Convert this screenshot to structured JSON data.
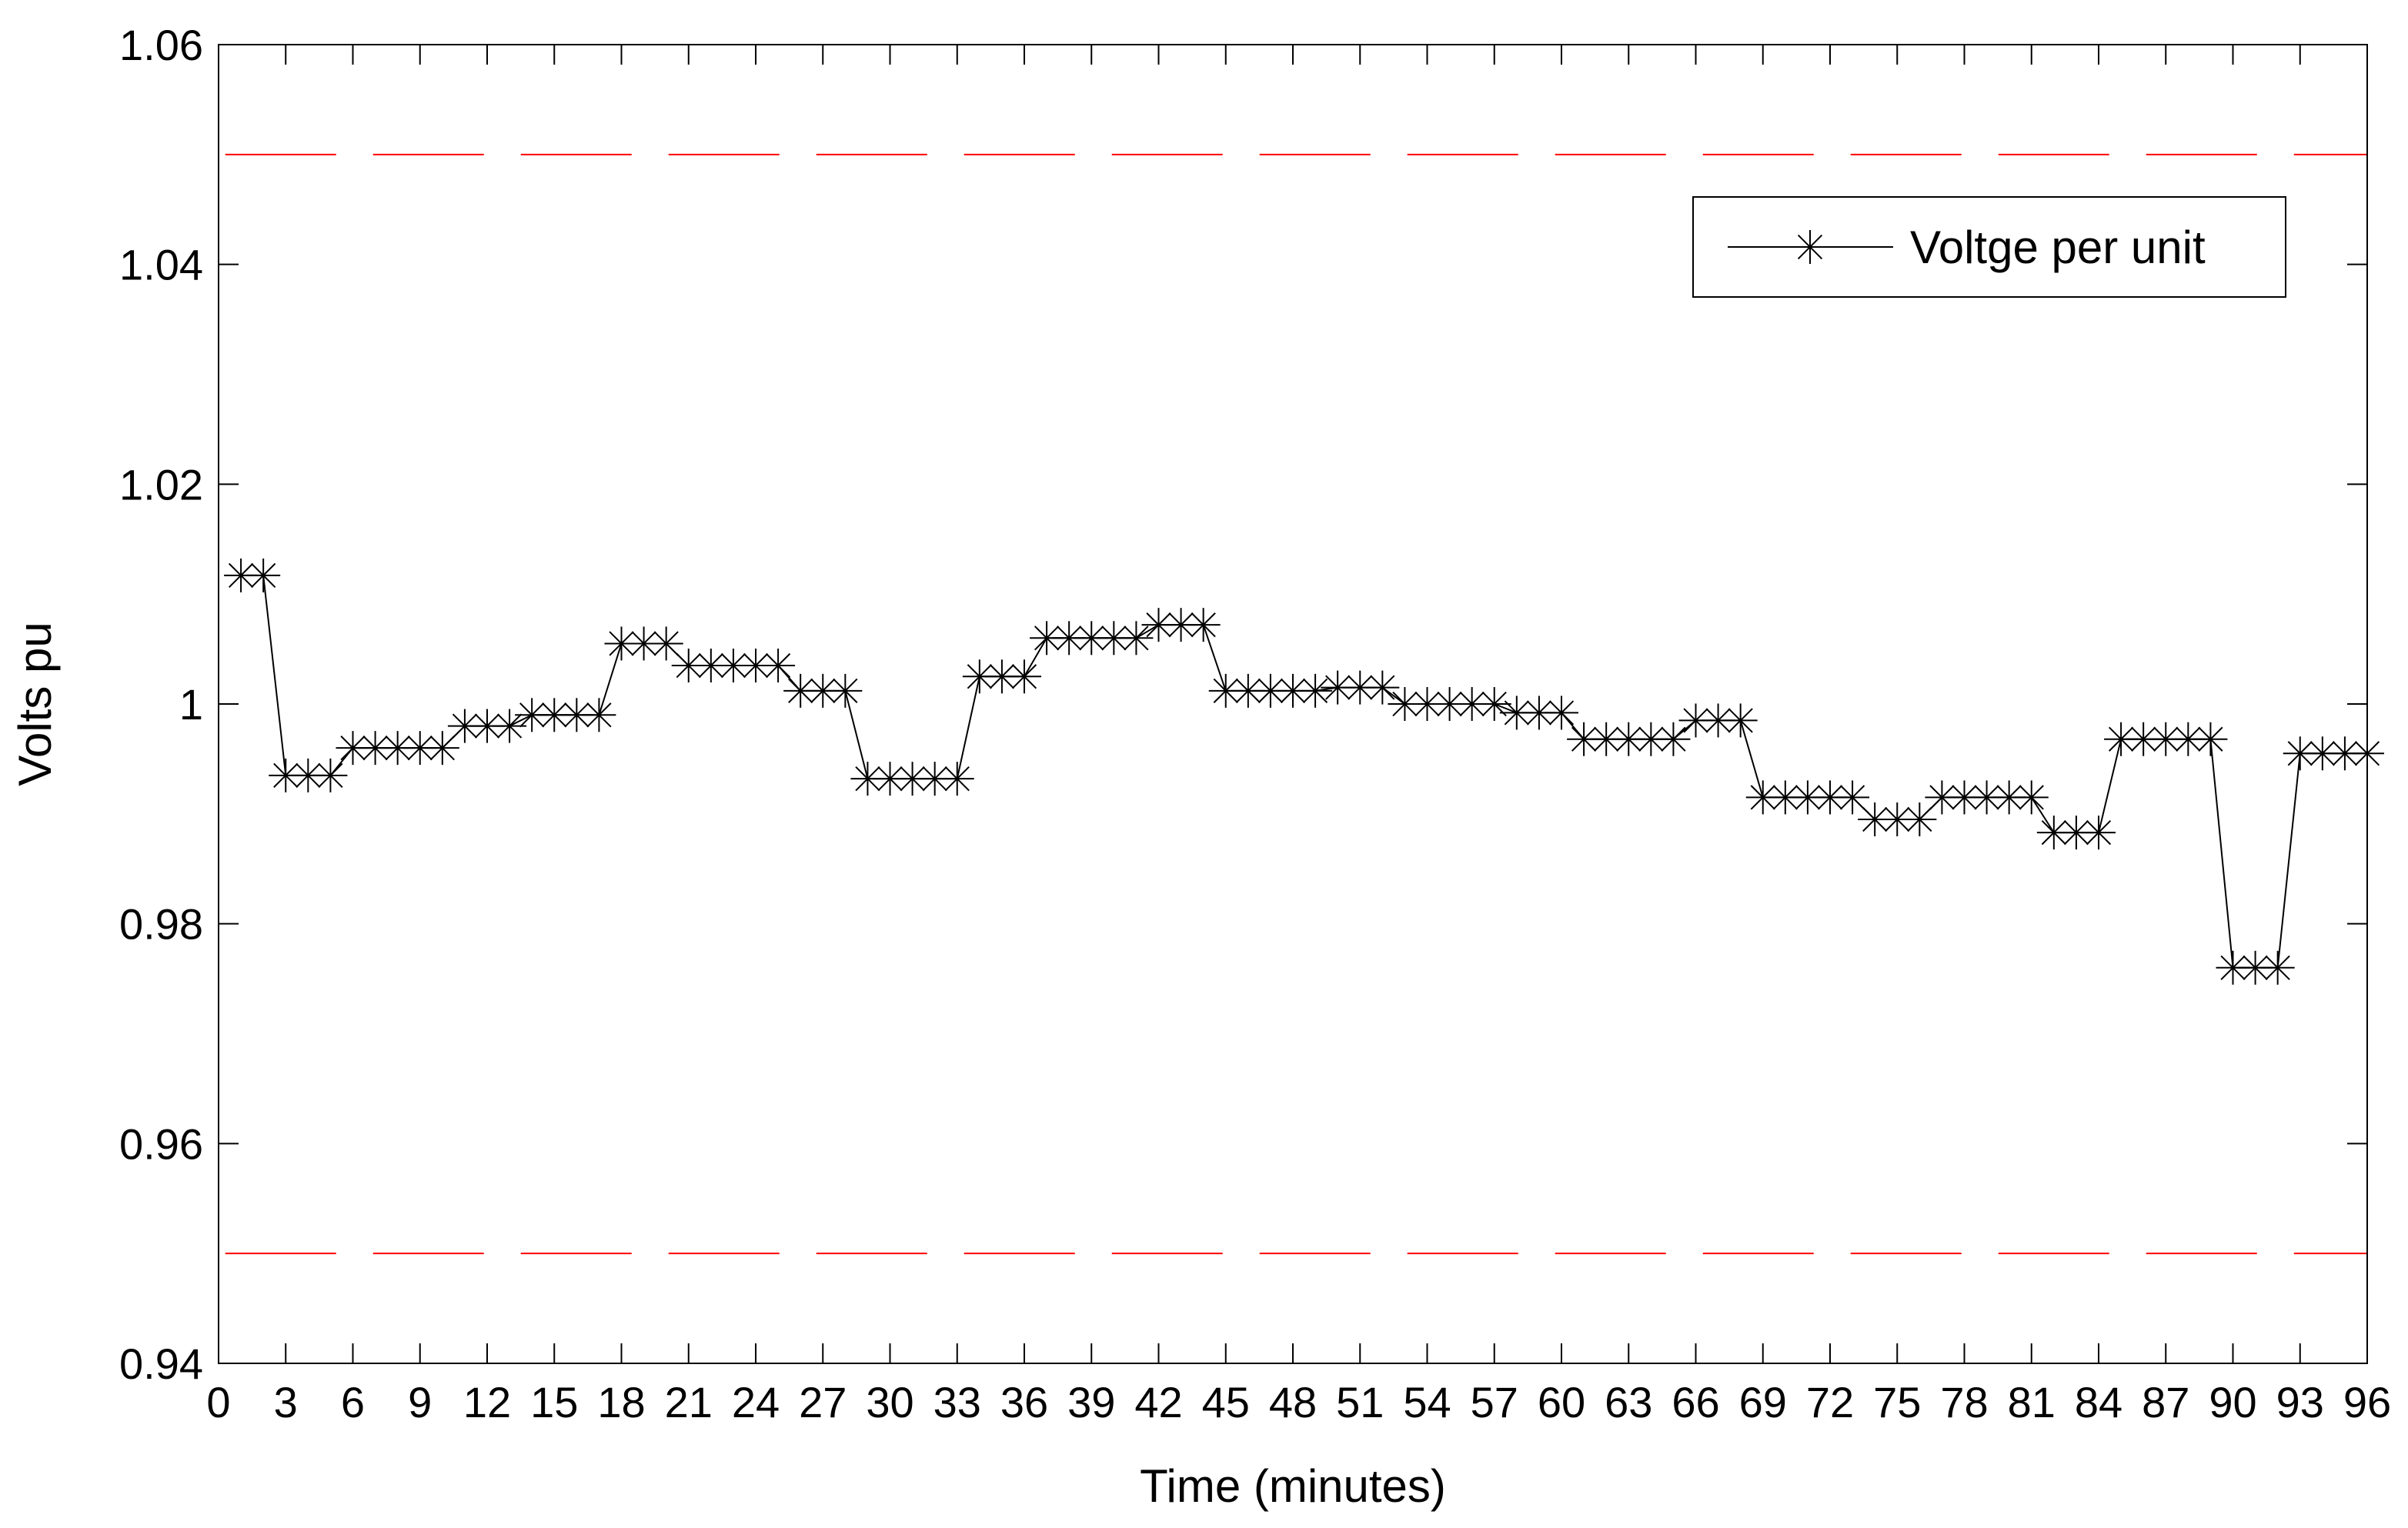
{
  "chart_data": {
    "type": "line",
    "title": "",
    "xlabel": "Time (minutes)",
    "ylabel": "Volts pu",
    "xlim": [
      0,
      96
    ],
    "ylim": [
      0.94,
      1.06
    ],
    "xticks": [
      0,
      3,
      6,
      9,
      12,
      15,
      18,
      21,
      24,
      27,
      30,
      33,
      36,
      39,
      42,
      45,
      48,
      51,
      54,
      57,
      60,
      63,
      66,
      69,
      72,
      75,
      78,
      81,
      84,
      87,
      90,
      93,
      96
    ],
    "yticks": [
      0.94,
      0.96,
      0.98,
      1,
      1.02,
      1.04,
      1.06
    ],
    "ytick_labels": [
      "0.94",
      "0.96",
      "0.98",
      "1",
      "1.02",
      "1.04",
      "1.06"
    ],
    "grid": false,
    "legend_position": "top-right",
    "series": [
      {
        "name": "Voltge per unit",
        "color": "#000000",
        "marker": "star",
        "x": [
          1,
          2,
          3,
          4,
          5,
          6,
          7,
          8,
          9,
          10,
          11,
          12,
          13,
          14,
          15,
          16,
          17,
          18,
          19,
          20,
          21,
          22,
          23,
          24,
          25,
          26,
          27,
          28,
          29,
          30,
          31,
          32,
          33,
          34,
          35,
          36,
          37,
          38,
          39,
          40,
          41,
          42,
          43,
          44,
          45,
          46,
          47,
          48,
          49,
          50,
          51,
          52,
          53,
          54,
          55,
          56,
          57,
          58,
          59,
          60,
          61,
          62,
          63,
          64,
          65,
          66,
          67,
          68,
          69,
          70,
          71,
          72,
          73,
          74,
          75,
          76,
          77,
          78,
          79,
          80,
          81,
          82,
          83,
          84,
          85,
          86,
          87,
          88,
          89,
          90,
          91,
          92,
          93,
          94,
          95,
          96
        ],
        "y": [
          1.0117,
          1.0117,
          0.9935,
          0.9935,
          0.9935,
          0.996,
          0.996,
          0.996,
          0.996,
          0.996,
          0.998,
          0.998,
          0.998,
          0.999,
          0.999,
          0.999,
          0.999,
          1.0055,
          1.0055,
          1.0055,
          1.0035,
          1.0035,
          1.0035,
          1.0035,
          1.0035,
          1.0012,
          1.0012,
          1.0012,
          0.9932,
          0.9932,
          0.9932,
          0.9932,
          0.9932,
          1.0025,
          1.0025,
          1.0025,
          1.006,
          1.006,
          1.006,
          1.006,
          1.006,
          1.0072,
          1.0072,
          1.0072,
          1.0012,
          1.0012,
          1.0012,
          1.0012,
          1.0012,
          1.0015,
          1.0015,
          1.0015,
          1.0,
          1.0,
          1.0,
          1.0,
          1.0,
          0.9992,
          0.9992,
          0.9992,
          0.9968,
          0.9968,
          0.9968,
          0.9968,
          0.9968,
          0.9985,
          0.9985,
          0.9985,
          0.9915,
          0.9915,
          0.9915,
          0.9915,
          0.9915,
          0.9895,
          0.9895,
          0.9895,
          0.9915,
          0.9915,
          0.9915,
          0.9915,
          0.9915,
          0.9883,
          0.9883,
          0.9883,
          0.9968,
          0.9968,
          0.9968,
          0.9968,
          0.9968,
          0.976,
          0.976,
          0.976,
          0.9955,
          0.9955,
          0.9955,
          0.9955
        ]
      }
    ],
    "reference_lines": [
      {
        "y": 1.05,
        "color": "#ff0000",
        "style": "dashed"
      },
      {
        "y": 0.95,
        "color": "#ff0000",
        "style": "dashed"
      }
    ]
  }
}
